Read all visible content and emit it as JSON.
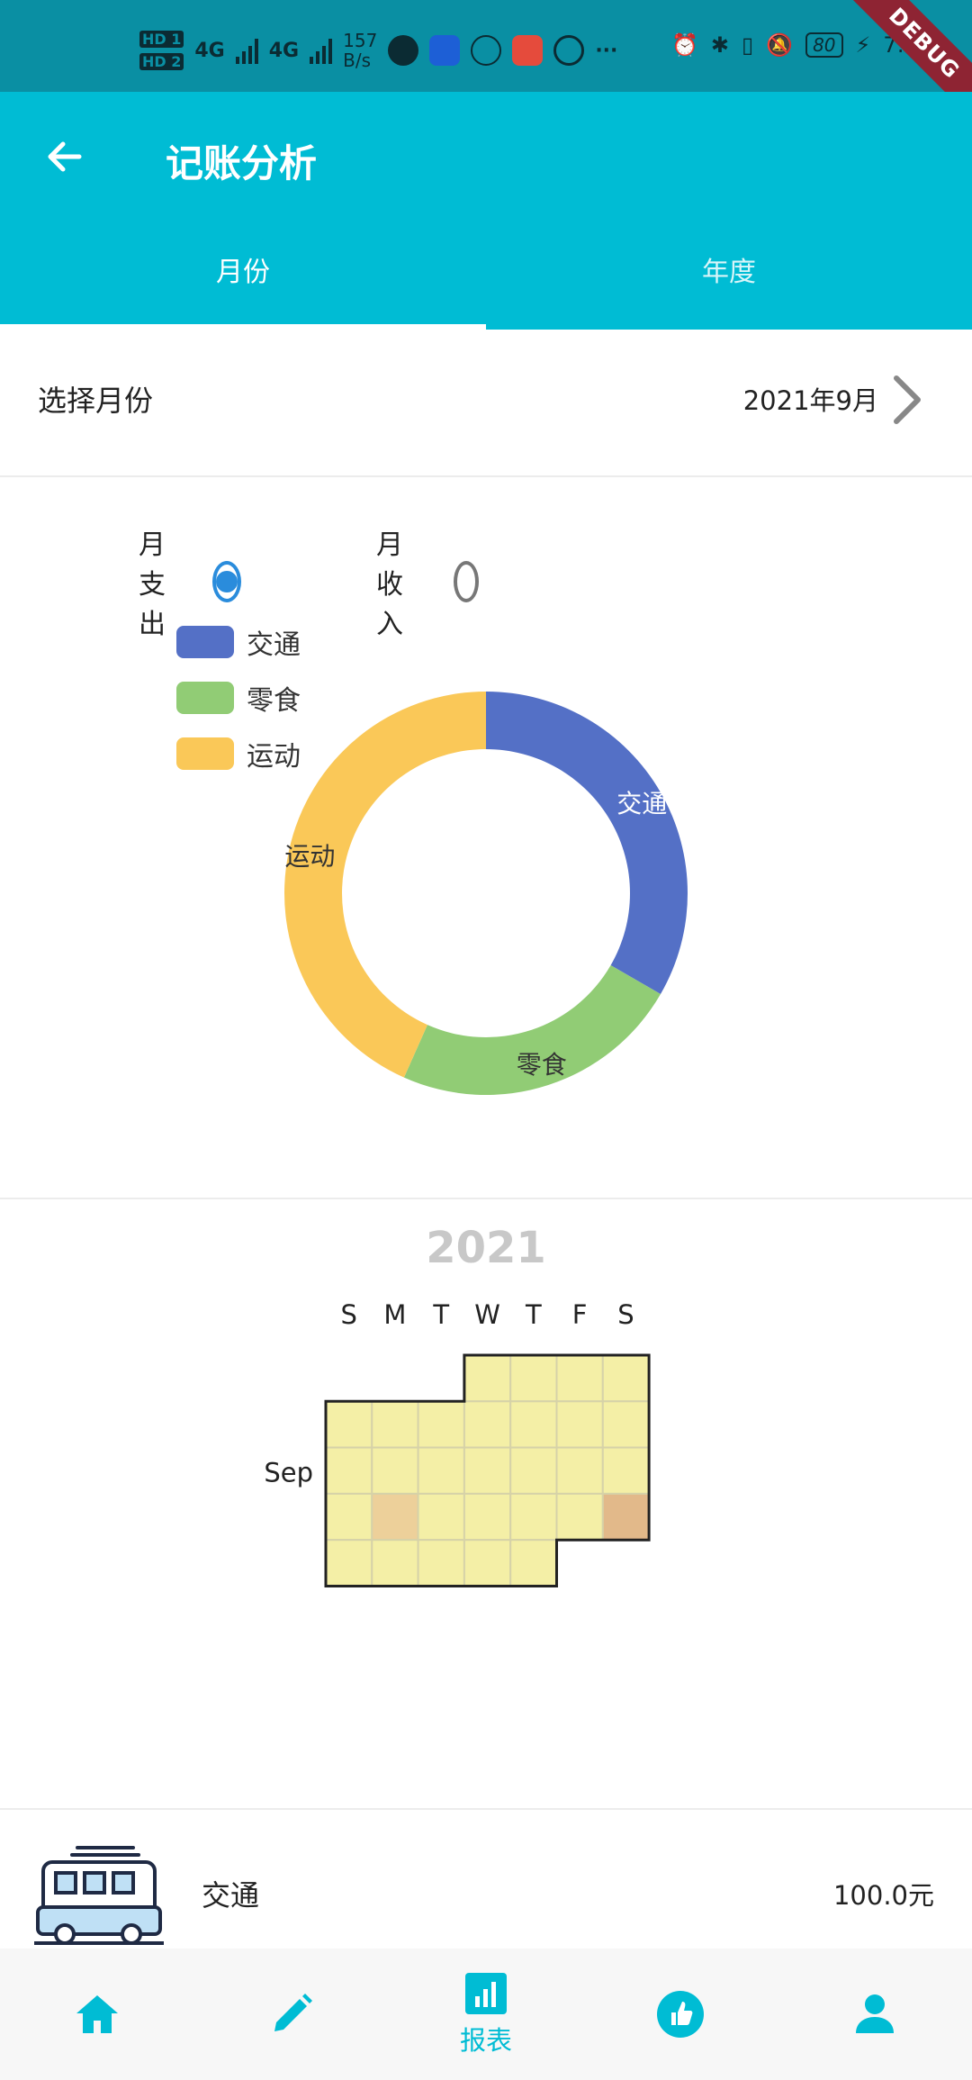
{
  "status_bar": {
    "hd1": "HD 1",
    "hd2": "HD 2",
    "net1": "4G",
    "net2": "4G",
    "speed_value": "157",
    "speed_unit": "B/s",
    "battery": "80",
    "time": "7:0"
  },
  "debug_banner": "DEBUG",
  "app_bar": {
    "title": "记账分析",
    "back_icon": "arrow-left-icon"
  },
  "tabs": [
    {
      "label": "月份",
      "active": true
    },
    {
      "label": "年度",
      "active": false
    }
  ],
  "month_selector": {
    "label": "选择月份",
    "value": "2021年9月"
  },
  "type_toggle": [
    {
      "label": "月支出",
      "checked": true
    },
    {
      "label": "月收入",
      "checked": false
    }
  ],
  "colors": {
    "accent": "#00bcd4",
    "radio": "#2a8cdc",
    "transport": "#5470c6",
    "snack": "#91cc75",
    "sport": "#fac858"
  },
  "chart_data": [
    {
      "type": "pie",
      "variant": "donut",
      "legend": [
        "交通",
        "零食",
        "运动"
      ],
      "legend_position": "top-left",
      "slices": [
        {
          "name": "交通",
          "value": 100.0,
          "color": "#5470c6"
        },
        {
          "name": "零食",
          "value": 70.0,
          "color": "#91cc75"
        },
        {
          "name": "运动",
          "value": 130.0,
          "color": "#fac858"
        }
      ]
    },
    {
      "type": "heatmap",
      "variant": "calendar",
      "year_label": "2021",
      "month_label": "Sep",
      "weekday_labels": [
        "S",
        "M",
        "T",
        "W",
        "T",
        "F",
        "S"
      ],
      "range": "2021-09",
      "highlighted_days": [
        {
          "date": "2021-09-20",
          "color": "#edd09a"
        },
        {
          "date": "2021-09-25",
          "color": "#e2b98a"
        }
      ],
      "base_color": "#f4efa6"
    }
  ],
  "list": [
    {
      "name": "交通",
      "amount": "100.0元",
      "icon": "bus-icon"
    }
  ],
  "bottom_nav": [
    {
      "icon": "home-icon",
      "label": ""
    },
    {
      "icon": "pencil-icon",
      "label": ""
    },
    {
      "icon": "bar-chart-icon",
      "label": "报表",
      "active": true
    },
    {
      "icon": "thumbs-up-icon",
      "label": ""
    },
    {
      "icon": "person-icon",
      "label": ""
    }
  ]
}
